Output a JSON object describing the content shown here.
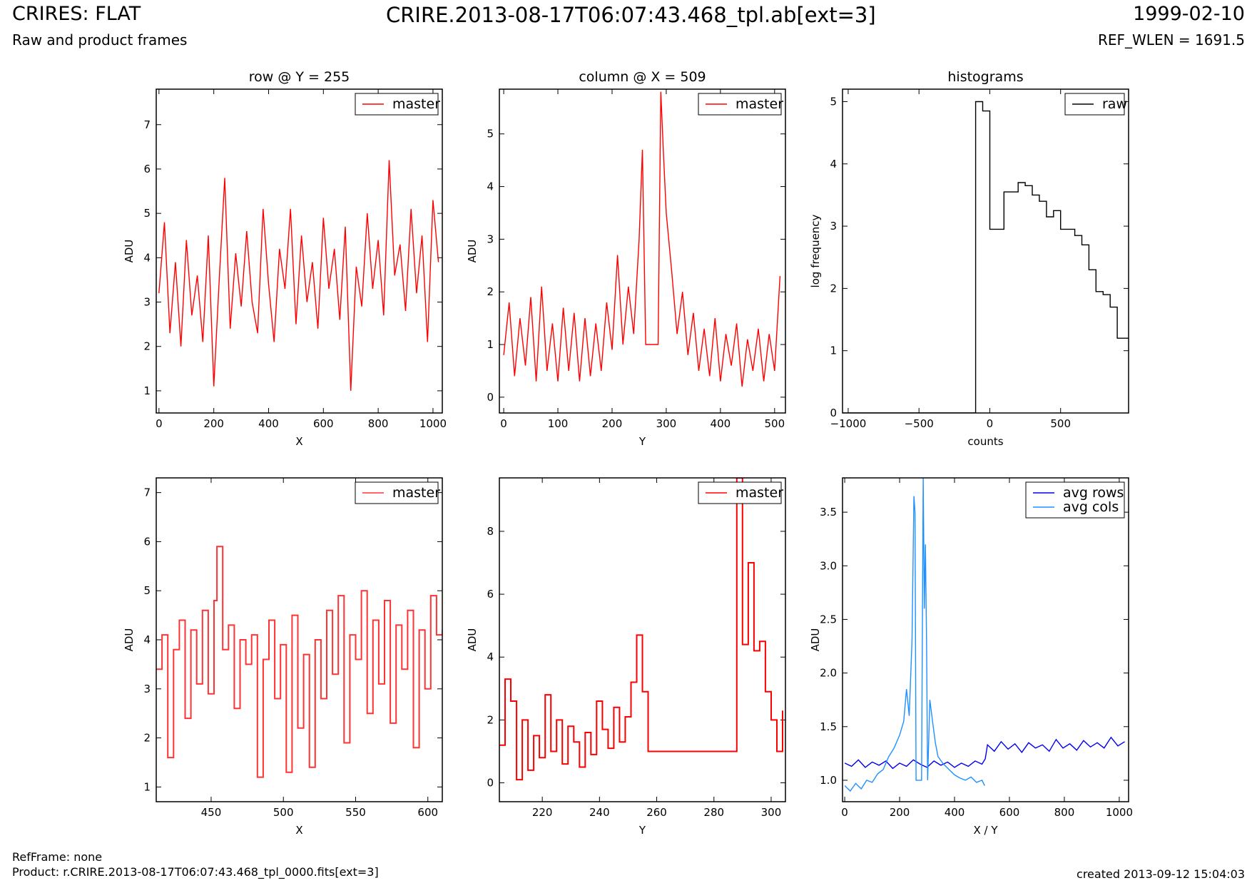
{
  "header": {
    "title_left": "CRIRES: FLAT",
    "subtitle_left": "Raw and product frames",
    "title_center": "CRIRE.2013-08-17T06:07:43.468_tpl.ab[ext=3]",
    "title_right": "1999-02-10",
    "subtitle_right": "REF_WLEN = 1691.5"
  },
  "footer": {
    "refframe": "RefFrame: none",
    "product": "Product: r.CRIRE.2013-08-17T06:07:43.468_tpl_0000.fits[ext=3]",
    "created": "created 2013-09-12 15:04:03"
  },
  "colors": {
    "master": "#ff0000",
    "master_zoom": "#ff3333",
    "raw": "#000000",
    "avg_rows": "#0000ee",
    "avg_cols": "#1e90ff"
  },
  "chart_data": [
    {
      "id": "row",
      "type": "line",
      "title": "row @ Y = 255",
      "xlabel": "X",
      "ylabel": "ADU",
      "xlim": [
        -10,
        1034
      ],
      "ylim": [
        0.5,
        7.8
      ],
      "xticks": [
        0,
        200,
        400,
        600,
        800,
        1000
      ],
      "yticks": [
        1,
        2,
        3,
        4,
        5,
        6,
        7
      ],
      "legend": "top-right",
      "series": [
        {
          "name": "master",
          "style": "line",
          "x": [
            0,
            20,
            40,
            60,
            80,
            100,
            120,
            140,
            160,
            180,
            200,
            220,
            240,
            260,
            280,
            300,
            320,
            340,
            360,
            380,
            400,
            420,
            440,
            460,
            480,
            500,
            520,
            540,
            560,
            580,
            600,
            620,
            640,
            660,
            680,
            700,
            720,
            740,
            760,
            780,
            800,
            820,
            840,
            860,
            880,
            900,
            920,
            940,
            960,
            980,
            1000,
            1020
          ],
          "y": [
            3.2,
            4.8,
            2.3,
            3.9,
            2.0,
            4.4,
            2.7,
            3.6,
            2.1,
            4.5,
            1.1,
            3.5,
            5.8,
            2.4,
            4.1,
            2.9,
            4.6,
            3.0,
            2.3,
            5.1,
            3.4,
            2.1,
            4.2,
            3.3,
            5.1,
            2.5,
            4.5,
            3.0,
            3.9,
            2.4,
            4.9,
            3.3,
            4.2,
            2.6,
            4.7,
            1.0,
            3.8,
            2.9,
            5.0,
            3.3,
            4.4,
            2.7,
            6.2,
            3.6,
            4.3,
            2.8,
            5.1,
            3.2,
            4.5,
            2.1,
            5.3,
            3.9
          ]
        }
      ]
    },
    {
      "id": "column",
      "type": "line",
      "title": "column @ X = 509",
      "xlabel": "Y",
      "ylabel": "ADU",
      "xlim": [
        -8,
        520
      ],
      "ylim": [
        -0.3,
        5.85
      ],
      "xticks": [
        0,
        100,
        200,
        300,
        400,
        500
      ],
      "yticks": [
        0,
        1,
        2,
        3,
        4,
        5
      ],
      "legend": "top-right",
      "series": [
        {
          "name": "master",
          "style": "line",
          "x": [
            0,
            10,
            20,
            30,
            40,
            50,
            60,
            70,
            80,
            90,
            100,
            110,
            120,
            130,
            140,
            150,
            160,
            170,
            180,
            190,
            200,
            210,
            220,
            230,
            240,
            250,
            256,
            262,
            270,
            280,
            285,
            290,
            295,
            300,
            310,
            320,
            330,
            340,
            350,
            360,
            370,
            380,
            390,
            400,
            410,
            420,
            430,
            440,
            450,
            460,
            470,
            480,
            490,
            500,
            510
          ],
          "y": [
            0.8,
            1.8,
            0.4,
            1.5,
            0.6,
            1.9,
            0.3,
            2.1,
            0.5,
            1.4,
            0.3,
            1.7,
            0.5,
            1.6,
            0.3,
            1.5,
            0.4,
            1.4,
            0.5,
            1.8,
            0.9,
            2.7,
            1.0,
            2.1,
            1.2,
            3.0,
            4.7,
            1.0,
            1.0,
            1.0,
            1.0,
            5.8,
            4.6,
            3.5,
            2.4,
            1.2,
            2.0,
            0.8,
            1.6,
            0.5,
            1.3,
            0.4,
            1.5,
            0.3,
            1.2,
            0.6,
            1.4,
            0.2,
            1.1,
            0.5,
            1.3,
            0.3,
            1.2,
            0.5,
            2.3
          ]
        }
      ]
    },
    {
      "id": "histograms",
      "type": "line",
      "title": "histograms",
      "xlabel": "counts",
      "ylabel": "log frequency",
      "xlim": [
        -1040,
        980
      ],
      "ylim": [
        0,
        5.2
      ],
      "xticks": [
        -1000,
        -500,
        0,
        500
      ],
      "yticks": [
        0,
        1,
        2,
        3,
        4,
        5
      ],
      "legend": "top-right",
      "series": [
        {
          "name": "raw",
          "style": "step",
          "x": [
            -1040,
            -100,
            -100,
            -50,
            0,
            50,
            100,
            150,
            200,
            250,
            300,
            350,
            400,
            450,
            500,
            550,
            600,
            650,
            700,
            750,
            800,
            850,
            900,
            950,
            980
          ],
          "y": [
            0,
            0,
            5.0,
            4.85,
            2.95,
            2.95,
            3.55,
            3.55,
            3.7,
            3.65,
            3.5,
            3.4,
            3.15,
            3.25,
            2.95,
            2.95,
            2.85,
            2.7,
            2.3,
            1.95,
            1.9,
            1.7,
            1.2,
            1.2,
            1.2
          ]
        }
      ]
    },
    {
      "id": "row_zoom",
      "type": "line",
      "xlabel": "X",
      "ylabel": "ADU",
      "xlim": [
        412,
        610
      ],
      "ylim": [
        0.7,
        7.3
      ],
      "xticks": [
        450,
        500,
        550,
        600
      ],
      "yticks": [
        1,
        2,
        3,
        4,
        5,
        6,
        7
      ],
      "legend": "top-right",
      "series": [
        {
          "name": "master",
          "style": "step",
          "x": [
            412,
            416,
            420,
            424,
            428,
            432,
            436,
            440,
            444,
            448,
            452,
            454,
            458,
            462,
            466,
            470,
            474,
            478,
            482,
            486,
            490,
            494,
            498,
            502,
            506,
            510,
            514,
            518,
            522,
            526,
            530,
            534,
            538,
            542,
            546,
            550,
            554,
            558,
            562,
            566,
            570,
            574,
            578,
            582,
            586,
            590,
            594,
            598,
            602,
            606,
            610
          ],
          "y": [
            3.4,
            4.1,
            1.6,
            3.8,
            4.4,
            2.4,
            4.2,
            3.1,
            4.6,
            2.9,
            4.8,
            5.9,
            3.8,
            4.3,
            2.6,
            4.0,
            3.5,
            4.1,
            1.2,
            3.6,
            4.4,
            2.8,
            3.9,
            1.3,
            4.5,
            2.2,
            3.7,
            1.4,
            4.0,
            2.8,
            4.6,
            3.3,
            4.9,
            1.9,
            4.1,
            3.6,
            5.0,
            2.5,
            4.4,
            3.1,
            4.8,
            2.3,
            4.3,
            3.4,
            4.6,
            1.8,
            4.2,
            3.0,
            4.9,
            4.1,
            4.2
          ]
        }
      ]
    },
    {
      "id": "column_zoom",
      "type": "line",
      "xlabel": "Y",
      "ylabel": "ADU",
      "xlim": [
        205,
        305
      ],
      "ylim": [
        -0.6,
        9.7
      ],
      "xticks": [
        220,
        240,
        260,
        280,
        300
      ],
      "yticks": [
        0,
        2,
        4,
        6,
        8
      ],
      "legend": "top-right",
      "series": [
        {
          "name": "master",
          "style": "step",
          "x": [
            205,
            207,
            209,
            211,
            213,
            215,
            217,
            219,
            221,
            223,
            225,
            227,
            229,
            231,
            233,
            235,
            237,
            239,
            241,
            243,
            245,
            247,
            249,
            251,
            253,
            255,
            257,
            259,
            288,
            290,
            292,
            294,
            296,
            298,
            300,
            302,
            304
          ],
          "y": [
            1.2,
            3.3,
            2.6,
            0.1,
            2.0,
            0.4,
            1.5,
            0.8,
            2.8,
            1.0,
            2.0,
            0.6,
            1.8,
            1.3,
            0.5,
            1.6,
            0.9,
            2.6,
            1.7,
            1.1,
            2.4,
            1.3,
            2.1,
            3.2,
            4.7,
            2.9,
            1.0,
            1.0,
            9.7,
            4.4,
            7.0,
            4.2,
            4.5,
            2.9,
            2.0,
            1.0,
            2.3
          ]
        }
      ]
    },
    {
      "id": "averages",
      "type": "line",
      "xlabel": "X / Y",
      "ylabel": "ADU",
      "xlim": [
        -8,
        1034
      ],
      "ylim": [
        0.8,
        3.82
      ],
      "xticks": [
        0,
        200,
        400,
        600,
        800,
        1000
      ],
      "yticks": [
        1.0,
        1.5,
        2.0,
        2.5,
        3.0,
        3.5
      ],
      "ytick_labels": [
        "1.0",
        "1.5",
        "2.0",
        "2.5",
        "3.0",
        "3.5"
      ],
      "legend": "top-right",
      "series": [
        {
          "name": "avg rows",
          "style": "line",
          "x": [
            0,
            25,
            50,
            75,
            100,
            125,
            150,
            175,
            200,
            225,
            250,
            275,
            300,
            325,
            350,
            375,
            400,
            425,
            450,
            475,
            500,
            512,
            520,
            545,
            570,
            595,
            620,
            645,
            670,
            695,
            720,
            745,
            770,
            795,
            820,
            845,
            870,
            895,
            920,
            945,
            970,
            995,
            1020
          ],
          "y": [
            1.16,
            1.13,
            1.19,
            1.12,
            1.17,
            1.14,
            1.18,
            1.11,
            1.16,
            1.13,
            1.19,
            1.15,
            1.12,
            1.18,
            1.14,
            1.17,
            1.12,
            1.16,
            1.13,
            1.18,
            1.15,
            1.2,
            1.33,
            1.27,
            1.36,
            1.29,
            1.34,
            1.26,
            1.35,
            1.3,
            1.33,
            1.27,
            1.38,
            1.3,
            1.34,
            1.28,
            1.37,
            1.31,
            1.35,
            1.3,
            1.4,
            1.32,
            1.36
          ]
        },
        {
          "name": "avg cols",
          "style": "line",
          "x": [
            0,
            20,
            40,
            60,
            80,
            100,
            120,
            140,
            160,
            180,
            200,
            215,
            225,
            235,
            245,
            252,
            256,
            260,
            264,
            270,
            280,
            286,
            290,
            294,
            298,
            302,
            310,
            320,
            330,
            340,
            360,
            380,
            400,
            420,
            440,
            460,
            480,
            500,
            510
          ],
          "y": [
            0.95,
            0.9,
            0.97,
            0.92,
            1.0,
            0.98,
            1.06,
            1.1,
            1.22,
            1.3,
            1.42,
            1.55,
            1.85,
            1.6,
            2.3,
            3.65,
            3.5,
            1.0,
            1.0,
            1.0,
            1.0,
            3.82,
            2.6,
            3.2,
            2.3,
            1.0,
            1.75,
            1.55,
            1.35,
            1.22,
            1.15,
            1.1,
            1.05,
            1.02,
            1.0,
            1.03,
            0.98,
            1.0,
            0.95
          ]
        }
      ]
    }
  ]
}
